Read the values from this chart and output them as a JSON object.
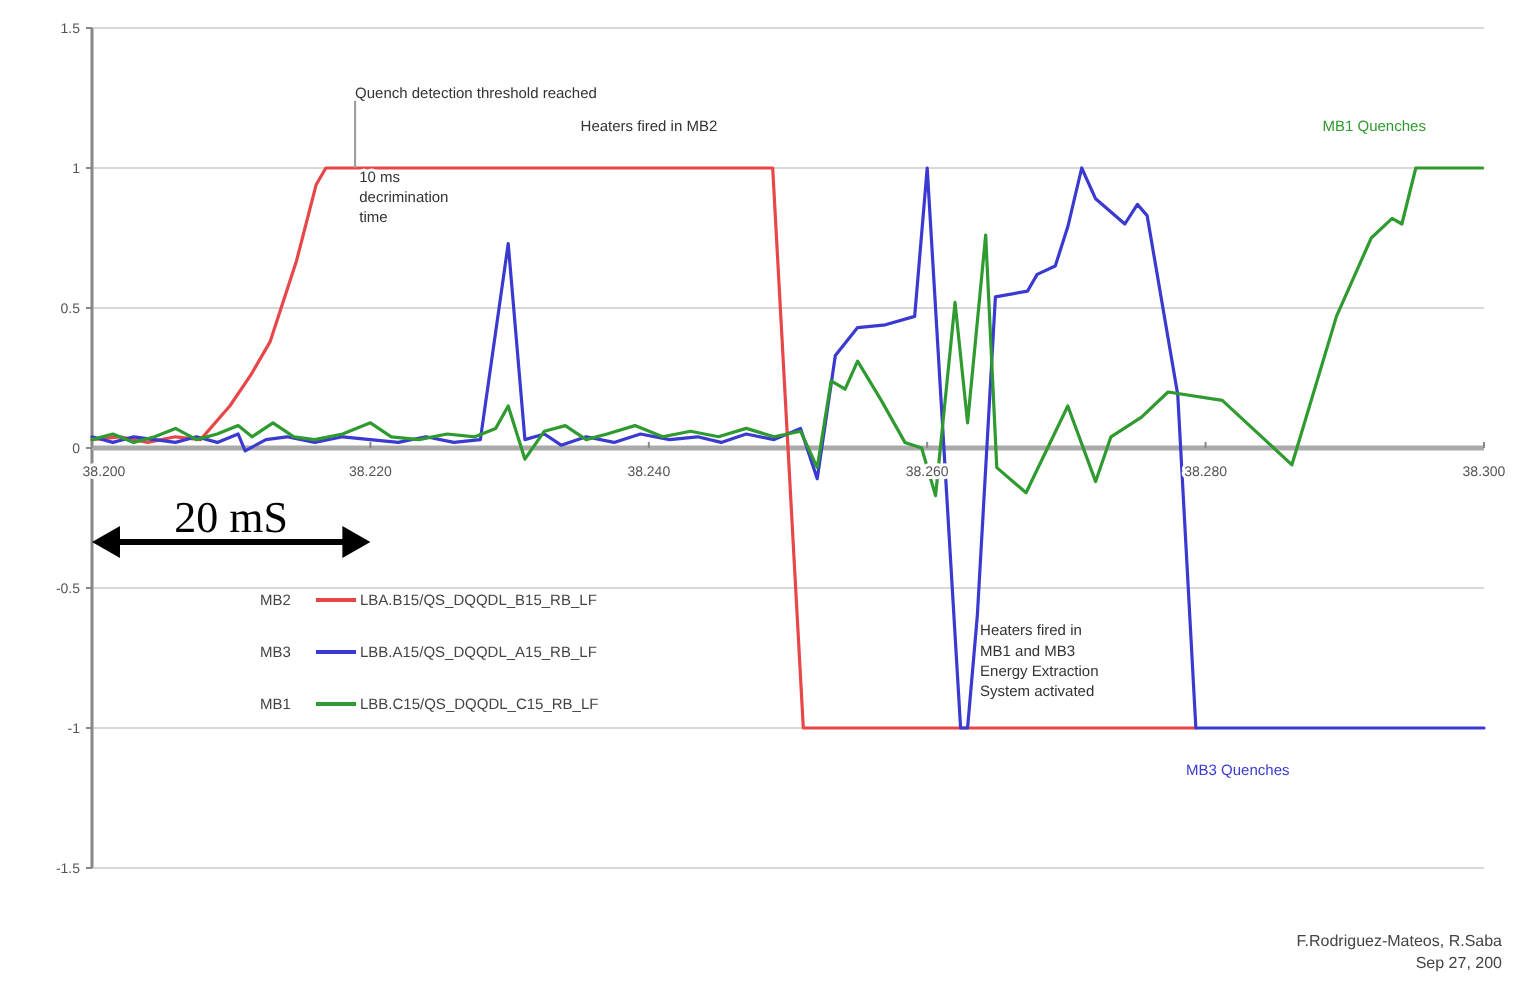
{
  "chart_data": {
    "type": "line",
    "xlim": [
      38.2,
      38.3
    ],
    "xticks": [
      {
        "value": 38.2,
        "label": "38.200"
      },
      {
        "value": 38.22,
        "label": "38.220"
      },
      {
        "value": 38.24,
        "label": "38.240"
      },
      {
        "value": 38.26,
        "label": "38.260"
      },
      {
        "value": 38.28,
        "label": "38.280"
      },
      {
        "value": 38.3,
        "label": "38.300"
      }
    ],
    "ylim": [
      -1.5,
      1.5
    ],
    "yticks": [
      -1.5,
      -1,
      -0.5,
      0,
      0.5,
      1,
      1.5
    ],
    "grid": "y",
    "legend": "bottom left",
    "line_style": "solid",
    "series": [
      {
        "name": "LBA.B15/QS_DQQDL_B15_RB_LF",
        "color": "#e8474a",
        "x": [
          38.2,
          38.202,
          38.204,
          38.206,
          38.2078,
          38.2099,
          38.2114,
          38.2128,
          38.2147,
          38.2161,
          38.2168,
          38.2489,
          38.2511,
          38.2793
        ],
        "values": [
          0.03,
          0.04,
          0.02,
          0.04,
          0.03,
          0.15,
          0.26,
          0.38,
          0.67,
          0.94,
          1,
          1,
          -1,
          -1
        ]
      },
      {
        "name": "LBB.A15/QS_DQQDL_A15_RB_LF",
        "color": "#3a3ad0",
        "x": [
          38.2,
          38.2015,
          38.203,
          38.2045,
          38.206,
          38.2075,
          38.209,
          38.2105,
          38.211,
          38.2125,
          38.214,
          38.216,
          38.218,
          38.22,
          38.222,
          38.224,
          38.226,
          38.2279,
          38.2299,
          38.2311,
          38.2325,
          38.2337,
          38.2355,
          38.2375,
          38.2394,
          38.2415,
          38.2435,
          38.2452,
          38.247,
          38.249,
          38.2509,
          38.2521,
          38.2534,
          38.255,
          38.257,
          38.2591,
          38.26,
          38.2624,
          38.2629,
          38.2636,
          38.2649,
          38.2672,
          38.2679,
          38.2692,
          38.2701,
          38.2711,
          38.2721,
          38.2742,
          38.2751,
          38.2758,
          38.278,
          38.2793,
          38.3
        ],
        "values": [
          0.04,
          0.02,
          0.04,
          0.03,
          0.02,
          0.04,
          0.02,
          0.05,
          -0.01,
          0.03,
          0.04,
          0.02,
          0.04,
          0.03,
          0.02,
          0.04,
          0.02,
          0.03,
          0.73,
          0.03,
          0.05,
          0.01,
          0.04,
          0.02,
          0.05,
          0.03,
          0.04,
          0.02,
          0.05,
          0.03,
          0.07,
          -0.11,
          0.33,
          0.43,
          0.44,
          0.47,
          1,
          -1,
          -1,
          -0.6,
          0.54,
          0.56,
          0.62,
          0.65,
          0.79,
          1,
          0.89,
          0.8,
          0.87,
          0.83,
          0.19,
          -1,
          -1
        ]
      },
      {
        "name": "LBB.C15/QS_DQQDL_C15_RB_LF",
        "color": "#2f9a2f",
        "x": [
          38.2,
          38.2015,
          38.203,
          38.2045,
          38.206,
          38.2075,
          38.209,
          38.2105,
          38.2115,
          38.213,
          38.2145,
          38.216,
          38.218,
          38.22,
          38.2215,
          38.2235,
          38.2255,
          38.2275,
          38.229,
          38.2299,
          38.2311,
          38.2325,
          38.234,
          38.2355,
          38.237,
          38.239,
          38.241,
          38.243,
          38.245,
          38.247,
          38.249,
          38.2509,
          38.2521,
          38.2531,
          38.2541,
          38.255,
          38.2567,
          38.2584,
          38.2596,
          38.2606,
          38.262,
          38.2629,
          38.2642,
          38.265,
          38.2671,
          38.2701,
          38.2721,
          38.2732,
          38.2754,
          38.2773,
          38.2812,
          38.2862,
          38.2894,
          38.2919,
          38.2934,
          38.2941,
          38.2951,
          38.2999
        ],
        "values": [
          0.03,
          0.05,
          0.02,
          0.04,
          0.07,
          0.03,
          0.05,
          0.08,
          0.04,
          0.09,
          0.04,
          0.03,
          0.05,
          0.09,
          0.04,
          0.03,
          0.05,
          0.04,
          0.07,
          0.15,
          -0.04,
          0.06,
          0.08,
          0.03,
          0.05,
          0.08,
          0.04,
          0.06,
          0.04,
          0.07,
          0.04,
          0.06,
          -0.07,
          0.24,
          0.21,
          0.31,
          0.17,
          0.02,
          0,
          -0.17,
          0.52,
          0.09,
          0.76,
          -0.07,
          -0.16,
          0.15,
          -0.12,
          0.04,
          0.11,
          0.2,
          0.17,
          -0.06,
          0.47,
          0.75,
          0.82,
          0.8,
          1,
          1
        ]
      }
    ],
    "annotations": [
      "Quench detection threshold reached",
      "10 ms\ndecrimination\ntime",
      "Heaters fired in MB2",
      "MB1 Quenches",
      "Heaters fired in\nMB1 and MB3\nEnergy Extraction\nSystem activated",
      "MB3 Quenches",
      "20 mS",
      "MB2",
      "MB3",
      "MB1",
      "F.Rodriguez-Mateos, R.Saba",
      "Sep 27, 200"
    ]
  }
}
